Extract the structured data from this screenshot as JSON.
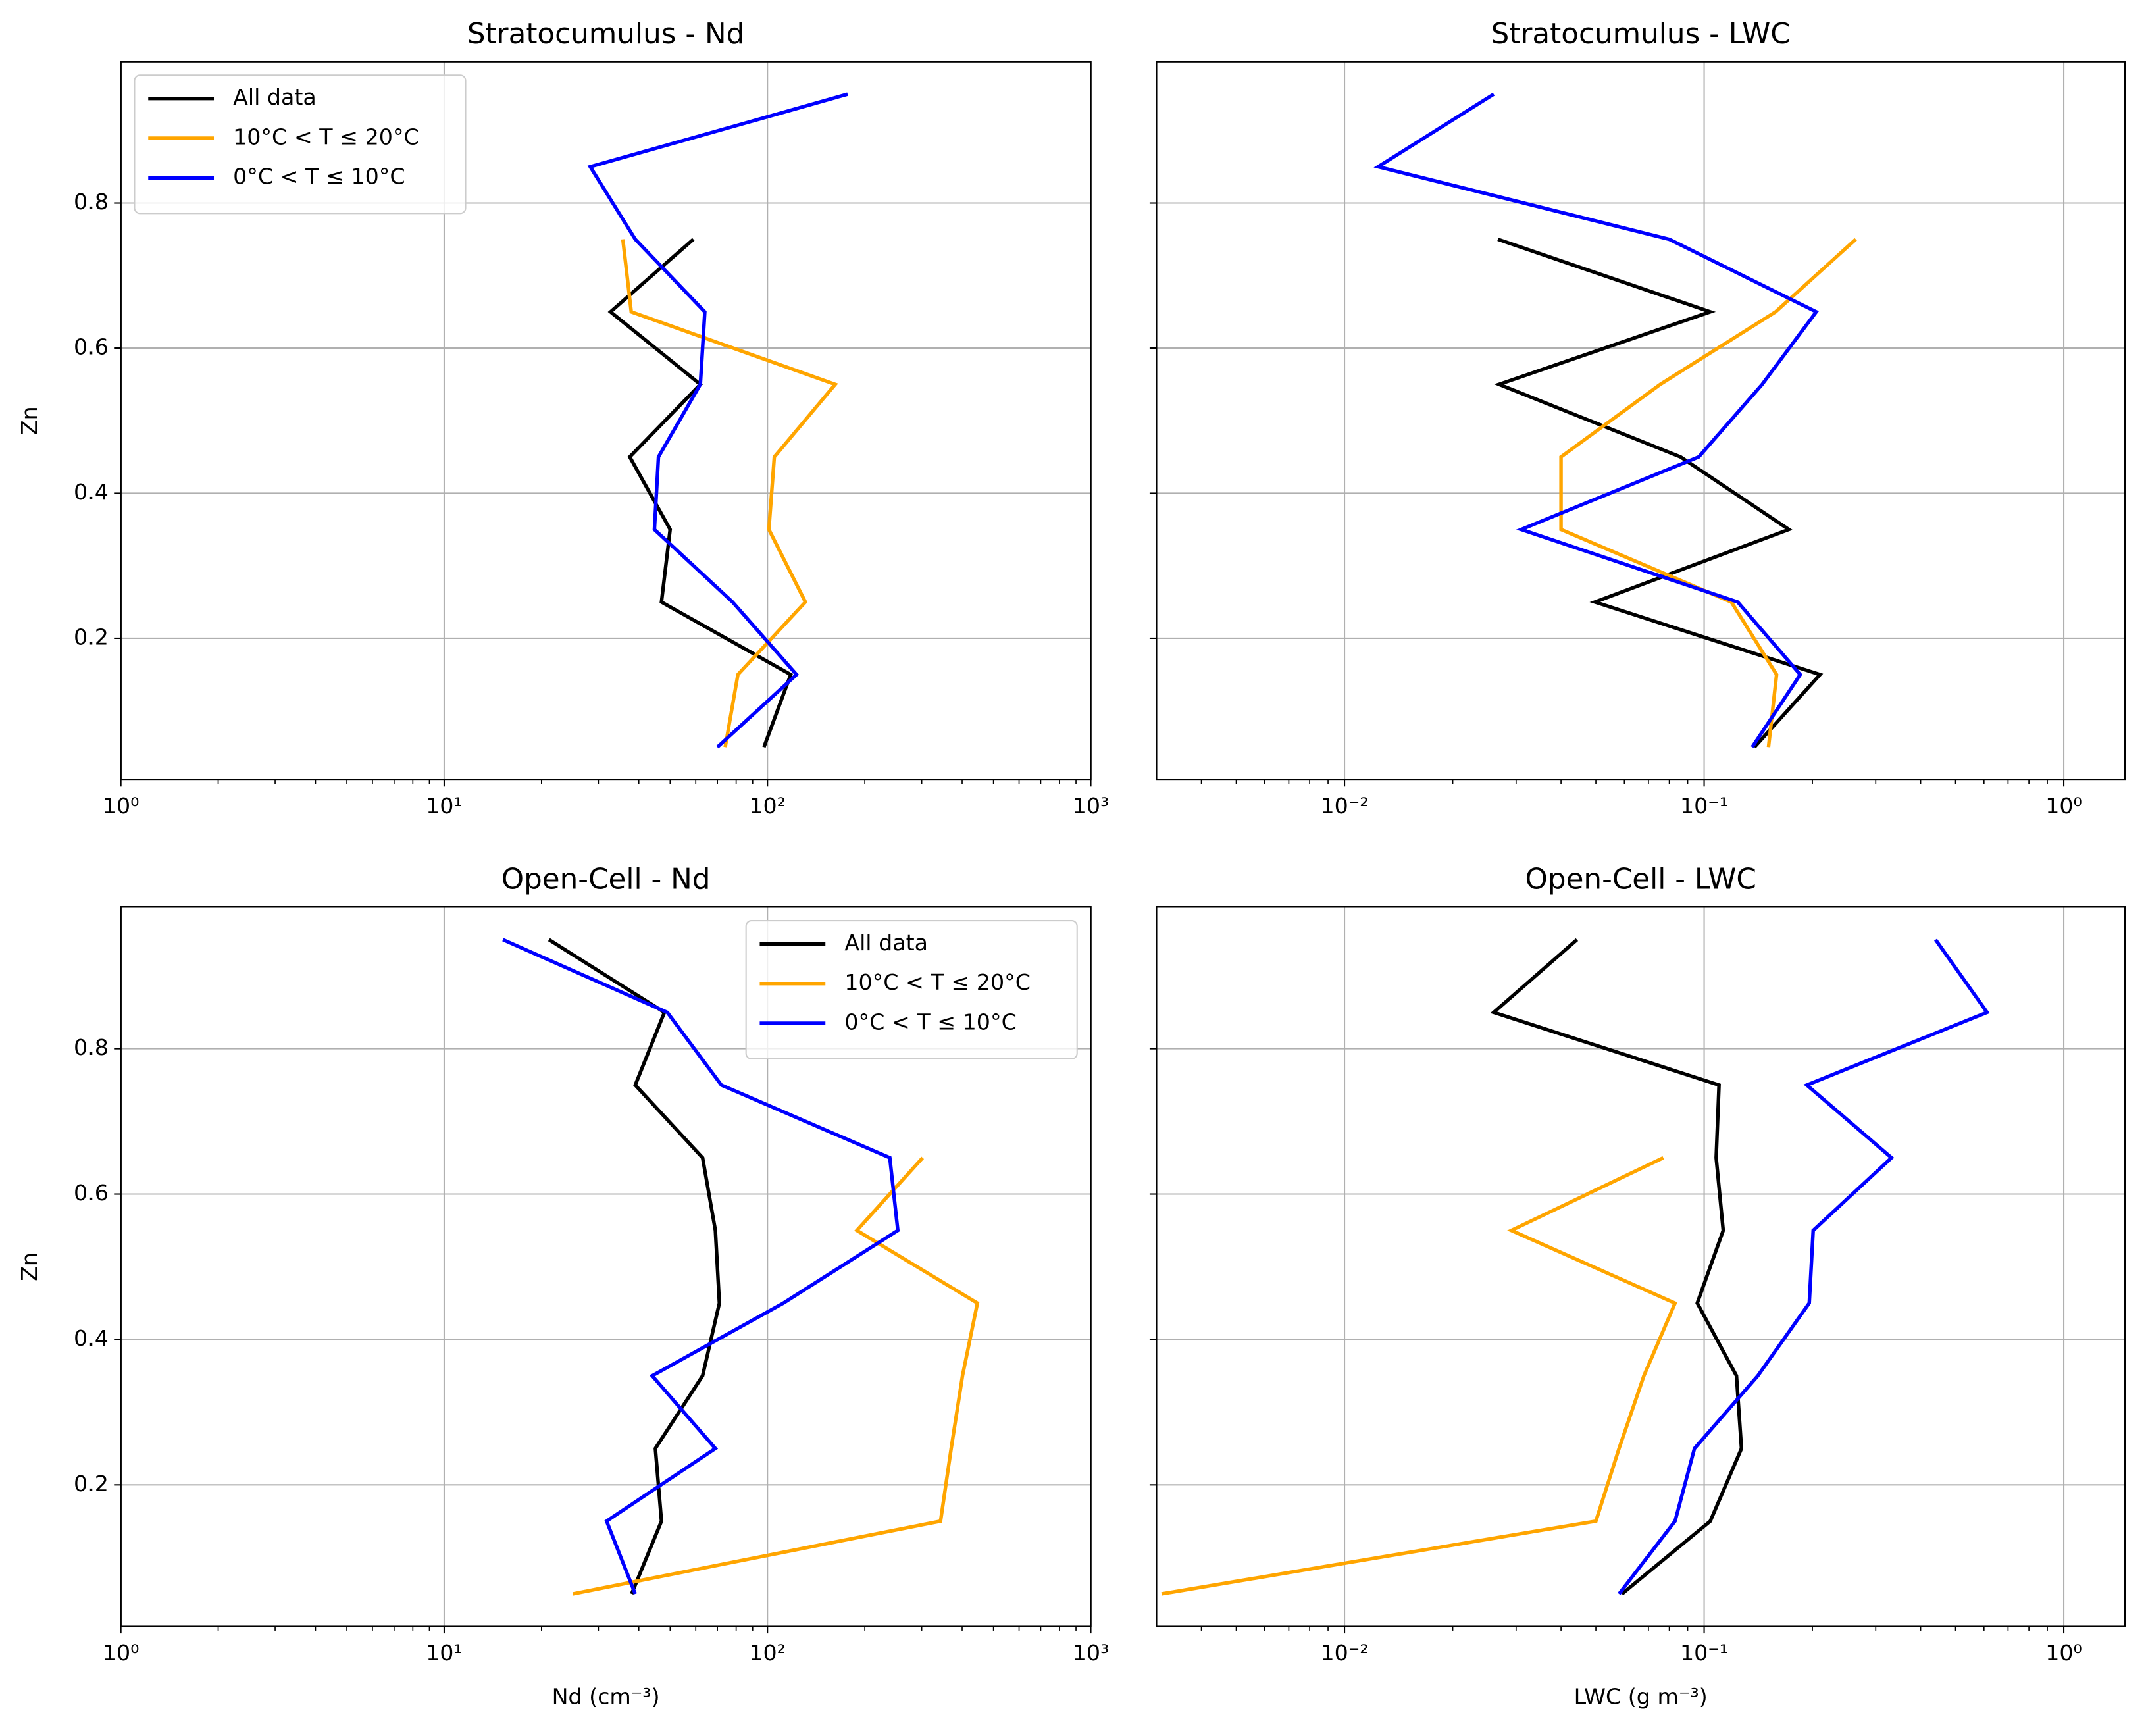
{
  "chart_data": [
    {
      "type": "line",
      "title": "Stratocumulus - Nd",
      "ylabel": "Zn",
      "log_x": true,
      "grid": true,
      "legend": "upper left",
      "xlim": [
        1,
        1000
      ],
      "xticks": [
        {
          "value": 1,
          "label": "10⁰"
        },
        {
          "value": 10,
          "label": "10¹"
        },
        {
          "value": 100,
          "label": "10²"
        },
        {
          "value": 1000,
          "label": "10³"
        }
      ],
      "ylim": [
        0.005,
        0.995
      ],
      "yticks": [
        0.2,
        0.4,
        0.6,
        0.8
      ],
      "show_ytick_labels": true,
      "y": [
        0.05,
        0.15,
        0.25,
        0.35,
        0.45,
        0.55,
        0.65,
        0.75,
        0.85,
        0.95
      ],
      "series": [
        {
          "name": "All data",
          "color": "#000000",
          "values": [
            97.5,
            118,
            47,
            50,
            37.5,
            62,
            32.7,
            59,
            null,
            null
          ]
        },
        {
          "name": "10°C < T ≤ 20°C",
          "color": "#ffa500",
          "values": [
            74,
            81,
            131,
            101,
            105,
            162,
            37.9,
            35.7,
            null,
            null
          ]
        },
        {
          "name": "0°C < T ≤ 10°C",
          "color": "#0000ff",
          "values": [
            70,
            123,
            78,
            44.7,
            46,
            62,
            64,
            39,
            28.3,
            177
          ]
        }
      ]
    },
    {
      "type": "line",
      "title": "Stratocumulus - LWC",
      "log_x": true,
      "grid": true,
      "xlim": [
        0.003,
        1.48
      ],
      "xticks": [
        {
          "value": 0.01,
          "label": "10⁻²"
        },
        {
          "value": 0.1,
          "label": "10⁻¹"
        },
        {
          "value": 1,
          "label": "10⁰"
        }
      ],
      "ylim": [
        0.005,
        0.995
      ],
      "yticks": [
        0.2,
        0.4,
        0.6,
        0.8
      ],
      "show_ytick_labels": false,
      "y": [
        0.05,
        0.15,
        0.25,
        0.35,
        0.45,
        0.55,
        0.65,
        0.75,
        0.85,
        0.95
      ],
      "series": [
        {
          "color": "#000000",
          "values": [
            0.138,
            0.21,
            0.0497,
            0.172,
            0.086,
            0.0269,
            0.104,
            0.0267,
            null,
            null
          ]
        },
        {
          "color": "#ffa500",
          "values": [
            0.151,
            0.159,
            0.119,
            0.04,
            0.04,
            0.0755,
            0.158,
            0.264,
            null,
            null
          ]
        },
        {
          "color": "#0000ff",
          "values": [
            0.136,
            0.185,
            0.124,
            0.031,
            0.0966,
            0.145,
            0.205,
            0.08,
            0.0124,
            0.026
          ]
        }
      ]
    },
    {
      "type": "line",
      "title": "Open-Cell - Nd",
      "xlabel": "Nd (cm⁻³)",
      "ylabel": "Zn",
      "log_x": true,
      "grid": true,
      "legend": "upper right",
      "xlim": [
        1,
        1000
      ],
      "xticks": [
        {
          "value": 1,
          "label": "10⁰"
        },
        {
          "value": 10,
          "label": "10¹"
        },
        {
          "value": 100,
          "label": "10²"
        },
        {
          "value": 1000,
          "label": "10³"
        }
      ],
      "ylim": [
        0.005,
        0.995
      ],
      "yticks": [
        0.2,
        0.4,
        0.6,
        0.8
      ],
      "show_ytick_labels": true,
      "y": [
        0.05,
        0.15,
        0.25,
        0.35,
        0.45,
        0.55,
        0.65,
        0.75,
        0.85,
        0.95
      ],
      "series": [
        {
          "name": "All data",
          "color": "#000000",
          "values": [
            38,
            47,
            45,
            63,
            71,
            69,
            63,
            39,
            48,
            21.1
          ]
        },
        {
          "name": "10°C < T ≤ 20°C",
          "color": "#ffa500",
          "values": [
            25,
            343,
            370,
            401,
            446,
            189,
            302,
            null,
            null,
            null
          ]
        },
        {
          "name": "0°C < T ≤ 10°C",
          "color": "#0000ff",
          "values": [
            39,
            31.8,
            69,
            44,
            112,
            253,
            239,
            72,
            49,
            15.2
          ]
        }
      ]
    },
    {
      "type": "line",
      "title": "Open-Cell - LWC",
      "xlabel": "LWC (g m⁻³)",
      "log_x": true,
      "grid": true,
      "xlim": [
        0.003,
        1.48
      ],
      "xticks": [
        {
          "value": 0.01,
          "label": "10⁻²"
        },
        {
          "value": 0.1,
          "label": "10⁻¹"
        },
        {
          "value": 1,
          "label": "10⁰"
        }
      ],
      "ylim": [
        0.005,
        0.995
      ],
      "yticks": [
        0.2,
        0.4,
        0.6,
        0.8
      ],
      "show_ytick_labels": false,
      "y": [
        0.05,
        0.15,
        0.25,
        0.35,
        0.45,
        0.55,
        0.65,
        0.75,
        0.85,
        0.95
      ],
      "series": [
        {
          "color": "#000000",
          "values": [
            0.0591,
            0.104,
            0.127,
            0.123,
            0.0957,
            0.113,
            0.108,
            0.11,
            0.026,
            0.0443
          ]
        },
        {
          "color": "#ffa500",
          "values": [
            0.0031,
            0.05,
            0.058,
            0.068,
            0.083,
            0.0291,
            0.077,
            null,
            null,
            null
          ]
        },
        {
          "color": "#0000ff",
          "values": [
            0.058,
            0.083,
            0.094,
            0.141,
            0.196,
            0.201,
            0.332,
            0.193,
            0.612,
            0.44
          ]
        }
      ]
    }
  ]
}
